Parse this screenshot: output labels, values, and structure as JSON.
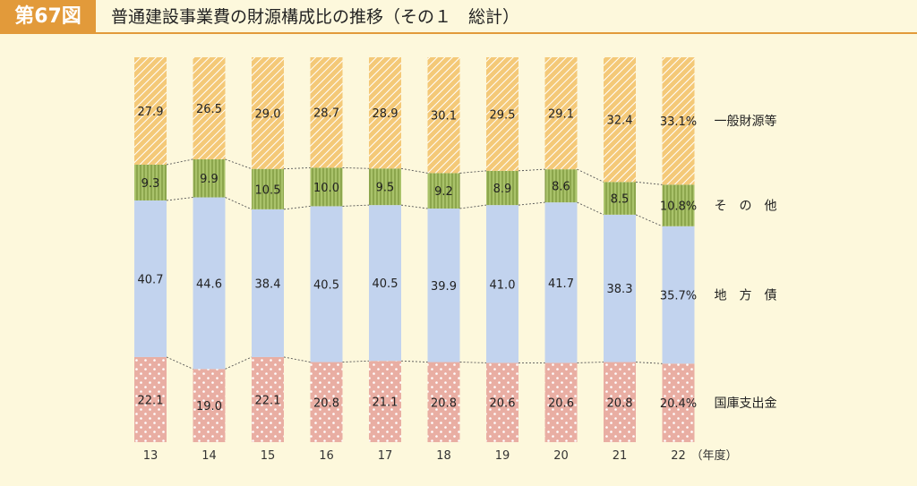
{
  "figure": {
    "badge": "第67図",
    "title": "普通建設事業費の財源構成比の推移（その１　総計）"
  },
  "colors": {
    "badge": "#e29a3a",
    "background": "#fdf8dc",
    "general": "#f4c978",
    "other": "#a9c26a",
    "local_bond": "#c2d3ee",
    "treasury": "#e9aea3"
  },
  "chart_data": {
    "type": "bar",
    "stacked": true,
    "percent_stacked": true,
    "categories": [
      "13",
      "14",
      "15",
      "16",
      "17",
      "18",
      "19",
      "20",
      "21",
      "22"
    ],
    "x_unit": "（年度）",
    "ylim": [
      0,
      100
    ],
    "series": [
      {
        "name": "国庫支出金",
        "values": [
          22.1,
          19.0,
          22.1,
          20.8,
          21.1,
          20.8,
          20.6,
          20.6,
          20.8,
          20.4
        ],
        "labels": [
          "22.1",
          "19.0",
          "22.1",
          "20.8",
          "21.1",
          "20.8",
          "20.6",
          "20.6",
          "20.8",
          "20.4%"
        ]
      },
      {
        "name": "地　方　債",
        "values": [
          40.7,
          44.6,
          38.4,
          40.5,
          40.5,
          39.9,
          41.0,
          41.7,
          38.3,
          35.7
        ],
        "labels": [
          "40.7",
          "44.6",
          "38.4",
          "40.5",
          "40.5",
          "39.9",
          "41.0",
          "41.7",
          "38.3",
          "35.7%"
        ]
      },
      {
        "name": "そ　の　他",
        "values": [
          9.3,
          9.9,
          10.5,
          10.0,
          9.5,
          9.2,
          8.9,
          8.6,
          8.5,
          10.8
        ],
        "labels": [
          "9.3",
          "9.9",
          "10.5",
          "10.0",
          "9.5",
          "9.2",
          "8.9",
          "8.6",
          "8.5",
          "10.8%"
        ]
      },
      {
        "name": "一般財源等",
        "values": [
          27.9,
          26.5,
          29.0,
          28.7,
          28.9,
          30.1,
          29.5,
          29.1,
          32.4,
          33.1
        ],
        "labels": [
          "27.9",
          "26.5",
          "29.0",
          "28.7",
          "28.9",
          "30.1",
          "29.5",
          "29.1",
          "32.4",
          "33.1%"
        ]
      }
    ],
    "grid": false,
    "connector_lines": "dotted",
    "legend": "right"
  }
}
